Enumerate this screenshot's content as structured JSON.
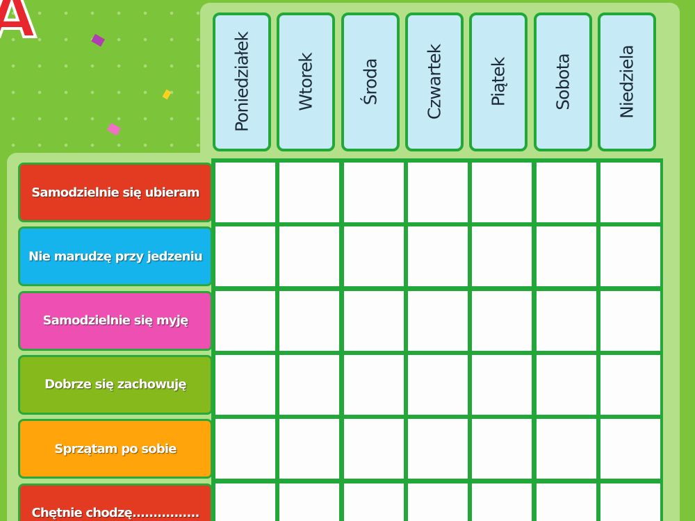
{
  "title_fragment": "A",
  "days": [
    "Poniedziałek",
    "Wtorek",
    "Środa",
    "Czwartek",
    "Piątek",
    "Sobota",
    "Niedziela"
  ],
  "tasks": [
    {
      "label": "Samodzielnie się ubieram",
      "color": "#e23b22"
    },
    {
      "label": "Nie marudzę przy jedzeniu",
      "color": "#16b4ec"
    },
    {
      "label": "Samodzielnie się myję",
      "color": "#ee4fb2"
    },
    {
      "label": "Dobrze się zachowuję",
      "color": "#86ba1c"
    },
    {
      "label": "Sprzątam po sobie",
      "color": "#ffa40a"
    },
    {
      "label": "Chętnie chodzę................",
      "color": "#e23b22"
    }
  ]
}
